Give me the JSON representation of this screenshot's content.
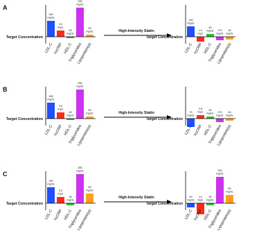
{
  "colors": [
    "#1f4fff",
    "#ff2a1a",
    "#22c02a",
    "#cc33ee",
    "#ffa020"
  ],
  "panels": [
    {
      "label": "A",
      "arrow_label": "High-Intensity Statin",
      "before": {
        "target_label": "Target Concentration",
        "categories": [
          "LDL-C",
          "hsCRP",
          "HDL-C",
          "Triglycerides",
          "Lipoprotein(a)"
        ],
        "value_labels": [
          [
            "160",
            "mg/dL"
          ],
          [
            "3.0",
            "mg/L"
          ],
          [
            "45",
            "mg/dL"
          ],
          [
            "260",
            "mg/dL"
          ],
          [
            "55",
            "mg/dL"
          ]
        ]
      },
      "after": {
        "target_label": "Target Concentration",
        "categories": [
          "LDL-C",
          "hsCRP",
          "HDL-C",
          "Triglycerides",
          "Lipoprotein(a)"
        ],
        "value_labels": [
          [
            "140",
            "mg/dL"
          ],
          [
            "1.0",
            "mg/L"
          ],
          [
            "45",
            "mg/dL"
          ],
          [
            "170",
            "mg/dL"
          ],
          [
            "45",
            "mg/dL"
          ]
        ]
      }
    },
    {
      "label": "B",
      "arrow_label": "High-Intensity Statin",
      "before": {
        "target_label": "Target Concentration",
        "categories": [
          "LDL-C",
          "hsCRP",
          "HDL-C",
          "Triglycerides",
          "Lipoprotein(a)"
        ],
        "value_labels": [
          [
            "160",
            "mg/dL"
          ],
          [
            "3.0",
            "mg/L"
          ],
          [
            "45",
            "mg/dL"
          ],
          [
            "260",
            "mg/dL"
          ],
          [
            "55",
            "mg/dL"
          ]
        ]
      },
      "after": {
        "target_label": "Target Concentration",
        "categories": [
          "LDL-C",
          "hsCRP",
          "HDL-C",
          "Triglycerides",
          "Lipoprotein(a)"
        ],
        "value_labels": [
          [
            "75",
            "mg/dL"
          ],
          [
            "2.8",
            "mg/L"
          ],
          [
            "45",
            "mg/dL"
          ],
          [
            "170",
            "mg/dL"
          ],
          [
            "45",
            "mg/dL"
          ]
        ]
      }
    },
    {
      "label": "C",
      "arrow_label": "High-Intensity Statin",
      "before": {
        "target_label": "Target Concentration",
        "categories": [
          "LDL-C",
          "hsCRP",
          "HDL-C",
          "Triglycerides",
          "Lipoprotein(a)"
        ],
        "value_labels": [
          [
            "160",
            "mg/dL"
          ],
          [
            "3.0",
            "mg/L"
          ],
          [
            "35",
            "mg/dL"
          ],
          [
            "260",
            "mg/dL"
          ],
          [
            "69",
            "mg/dL"
          ]
        ]
      },
      "after": {
        "target_label": "Target Concentration",
        "categories": [
          "LDL-C",
          "hsCRP",
          "HDL-C",
          "Triglycerides",
          "Lipoprotein(a)"
        ],
        "value_labels": [
          [
            "50",
            "mg/dL"
          ],
          [
            "1.0",
            "mg/L"
          ],
          [
            "35",
            "mg/dL"
          ],
          [
            "240",
            "mg/dL"
          ],
          [
            "60",
            "mg/dL"
          ]
        ]
      }
    }
  ]
}
